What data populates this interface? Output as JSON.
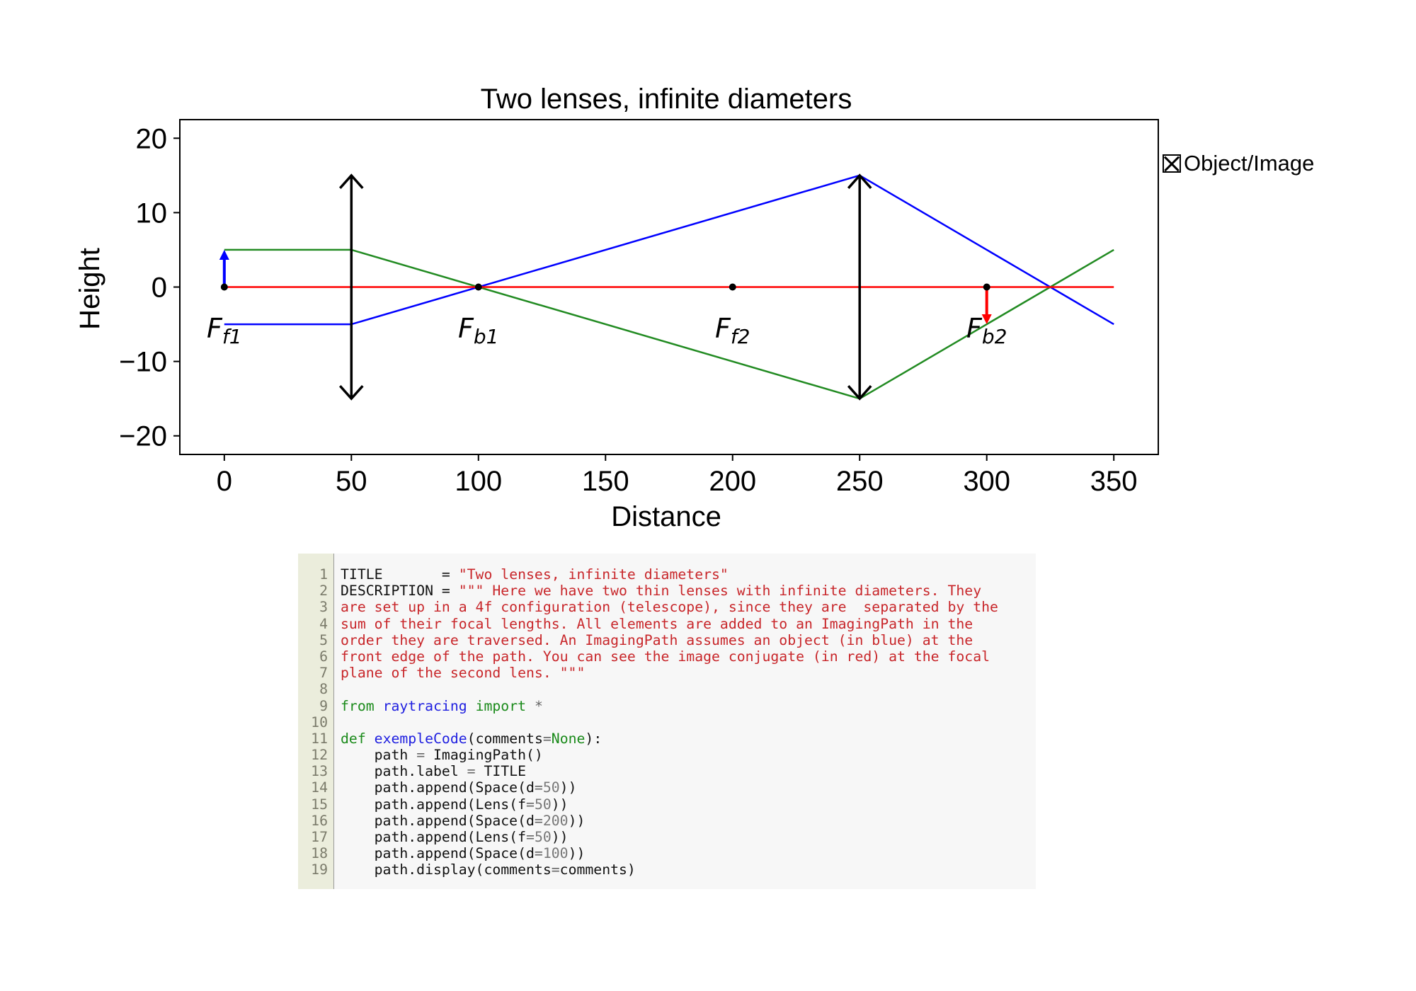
{
  "chart_data": {
    "type": "line",
    "title": "Two lenses, infinite diameters",
    "xlabel": "Distance",
    "ylabel": "Height",
    "xlim": [
      -17.5,
      367.5
    ],
    "ylim": [
      -22.5,
      22.5
    ],
    "xticks": [
      0,
      50,
      100,
      150,
      200,
      250,
      300,
      350
    ],
    "yticks": [
      20,
      10,
      0,
      -10,
      -20
    ],
    "ytick_labels": [
      "20",
      "10",
      "0",
      "−10",
      "−20"
    ],
    "grid": false,
    "legend": {
      "entries": [
        "Object/Image"
      ],
      "placement": "outside top-right"
    },
    "lenses": [
      {
        "x": 50,
        "half_height": 15,
        "color": "#000000"
      },
      {
        "x": 250,
        "half_height": 15,
        "color": "#000000"
      }
    ],
    "object": {
      "x": 0,
      "height": 5,
      "color": "#0000ff"
    },
    "image": {
      "x": 300,
      "height": -5,
      "color": "#ff0000"
    },
    "focal_points": [
      {
        "x": 0,
        "label": "F",
        "subscript": "f1"
      },
      {
        "x": 100,
        "label": "F",
        "subscript": "b1"
      },
      {
        "x": 200,
        "label": "F",
        "subscript": "f2"
      },
      {
        "x": 300,
        "label": "F",
        "subscript": "b2"
      }
    ],
    "series": [
      {
        "color": "#0000ff",
        "x": [
          0,
          50,
          250,
          350
        ],
        "y": [
          -5,
          -5,
          15,
          -5
        ]
      },
      {
        "color": "#228b22",
        "x": [
          0,
          50,
          250,
          350
        ],
        "y": [
          5,
          5,
          -15,
          5
        ]
      },
      {
        "color": "#ff0000",
        "x": [
          0,
          50,
          250,
          350
        ],
        "y": [
          0,
          0,
          0,
          0
        ]
      }
    ]
  },
  "code": {
    "lines": [
      {
        "n": "1",
        "tokens": [
          {
            "t": "TITLE       = ",
            "c": "pl"
          },
          {
            "t": "\"Two lenses, infinite diameters\"",
            "c": "str"
          }
        ]
      },
      {
        "n": "2",
        "tokens": [
          {
            "t": "DESCRIPTION = ",
            "c": "pl"
          },
          {
            "t": "\"\"\" Here we have two thin lenses with infinite diameters. They",
            "c": "str"
          }
        ]
      },
      {
        "n": "3",
        "tokens": [
          {
            "t": "are set up in a 4f configuration (telescope), since they are  separated by the",
            "c": "str"
          }
        ]
      },
      {
        "n": "4",
        "tokens": [
          {
            "t": "sum of their focal lengths. All elements are added to an ImagingPath in the",
            "c": "str"
          }
        ]
      },
      {
        "n": "5",
        "tokens": [
          {
            "t": "order they are traversed. An ImagingPath assumes an object (in blue) at the",
            "c": "str"
          }
        ]
      },
      {
        "n": "6",
        "tokens": [
          {
            "t": "front edge of the path. You can see the image conjugate (in red) at the focal",
            "c": "str"
          }
        ]
      },
      {
        "n": "7",
        "tokens": [
          {
            "t": "plane of the second lens. \"\"\"",
            "c": "str"
          }
        ]
      },
      {
        "n": "8",
        "tokens": []
      },
      {
        "n": "9",
        "tokens": [
          {
            "t": "from",
            "c": "kw"
          },
          {
            "t": " ",
            "c": "pl"
          },
          {
            "t": "raytracing",
            "c": "fn"
          },
          {
            "t": " ",
            "c": "pl"
          },
          {
            "t": "import",
            "c": "kw"
          },
          {
            "t": " *",
            "c": "op"
          }
        ]
      },
      {
        "n": "10",
        "tokens": []
      },
      {
        "n": "11",
        "tokens": [
          {
            "t": "def",
            "c": "kw"
          },
          {
            "t": " ",
            "c": "pl"
          },
          {
            "t": "exempleCode",
            "c": "fn"
          },
          {
            "t": "(comments",
            "c": "pl"
          },
          {
            "t": "=",
            "c": "op"
          },
          {
            "t": "None",
            "c": "kw"
          },
          {
            "t": "):",
            "c": "pl"
          }
        ]
      },
      {
        "n": "12",
        "tokens": [
          {
            "t": "    path ",
            "c": "pl"
          },
          {
            "t": "=",
            "c": "op"
          },
          {
            "t": " ImagingPath()",
            "c": "pl"
          }
        ]
      },
      {
        "n": "13",
        "tokens": [
          {
            "t": "    path.label ",
            "c": "pl"
          },
          {
            "t": "=",
            "c": "op"
          },
          {
            "t": " TITLE",
            "c": "pl"
          }
        ]
      },
      {
        "n": "14",
        "tokens": [
          {
            "t": "    path.append(Space(d",
            "c": "pl"
          },
          {
            "t": "=",
            "c": "op"
          },
          {
            "t": "50",
            "c": "num"
          },
          {
            "t": "))",
            "c": "pl"
          }
        ]
      },
      {
        "n": "15",
        "tokens": [
          {
            "t": "    path.append(Lens(f",
            "c": "pl"
          },
          {
            "t": "=",
            "c": "op"
          },
          {
            "t": "50",
            "c": "num"
          },
          {
            "t": "))",
            "c": "pl"
          }
        ]
      },
      {
        "n": "16",
        "tokens": [
          {
            "t": "    path.append(Space(d",
            "c": "pl"
          },
          {
            "t": "=",
            "c": "op"
          },
          {
            "t": "200",
            "c": "num"
          },
          {
            "t": "))",
            "c": "pl"
          }
        ]
      },
      {
        "n": "17",
        "tokens": [
          {
            "t": "    path.append(Lens(f",
            "c": "pl"
          },
          {
            "t": "=",
            "c": "op"
          },
          {
            "t": "50",
            "c": "num"
          },
          {
            "t": "))",
            "c": "pl"
          }
        ]
      },
      {
        "n": "18",
        "tokens": [
          {
            "t": "    path.append(Space(d",
            "c": "pl"
          },
          {
            "t": "=",
            "c": "op"
          },
          {
            "t": "100",
            "c": "num"
          },
          {
            "t": "))",
            "c": "pl"
          }
        ]
      },
      {
        "n": "19",
        "tokens": [
          {
            "t": "    path.display(comments",
            "c": "pl"
          },
          {
            "t": "=",
            "c": "op"
          },
          {
            "t": "comments)",
            "c": "pl"
          }
        ]
      }
    ]
  }
}
